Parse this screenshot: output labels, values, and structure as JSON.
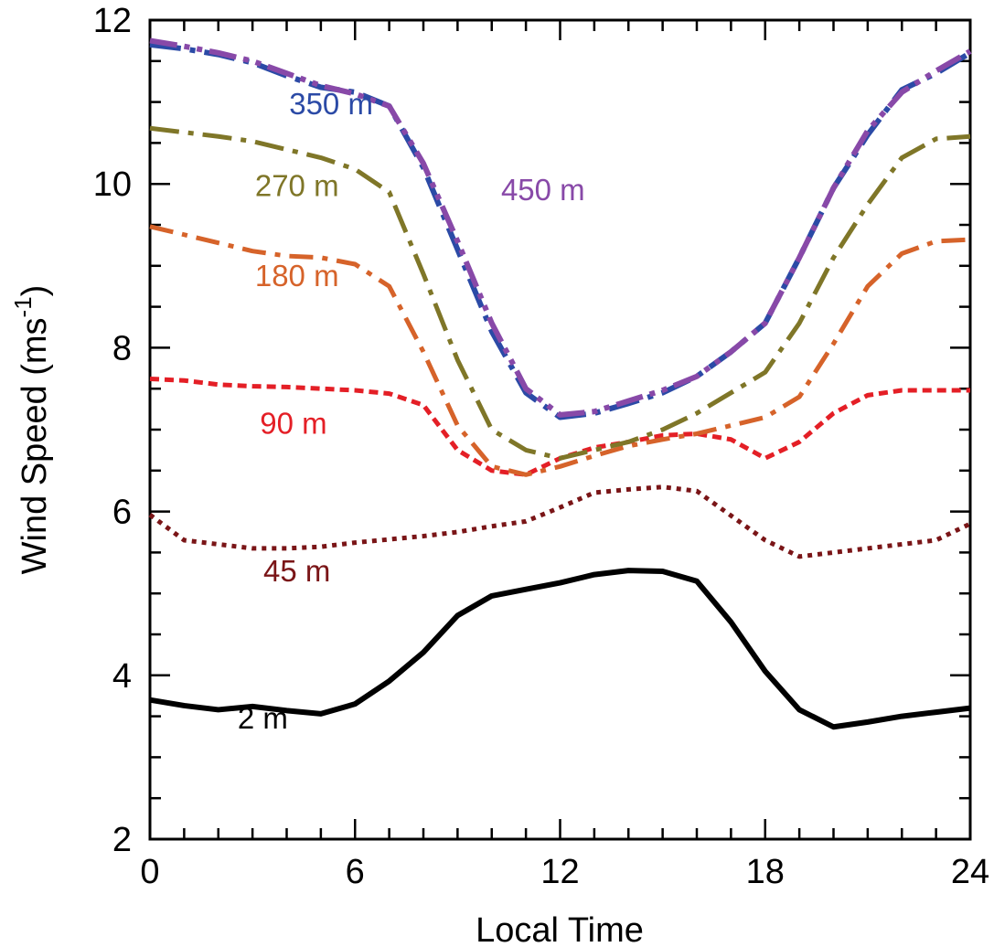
{
  "chart_data": {
    "type": "line",
    "xlabel": "Local Time",
    "ylabel": "Wind Speed (ms",
    "ylabel_superscript": "-1",
    "ylabel_close": ")",
    "xlim": [
      0,
      24
    ],
    "ylim": [
      2,
      12
    ],
    "x_ticks": [
      0,
      6,
      12,
      18,
      24
    ],
    "y_ticks": [
      2,
      4,
      6,
      8,
      10,
      12
    ],
    "x": [
      0,
      1,
      2,
      3,
      4,
      5,
      6,
      7,
      8,
      9,
      10,
      11,
      12,
      13,
      14,
      15,
      16,
      17,
      18,
      19,
      20,
      21,
      22,
      23,
      24
    ],
    "series": [
      {
        "name": "2 m",
        "color": "#000000",
        "dash": "solid",
        "label_at": [
          3.3,
          3.35
        ],
        "values": [
          3.7,
          3.63,
          3.58,
          3.62,
          3.57,
          3.53,
          3.65,
          3.93,
          4.28,
          4.73,
          4.97,
          5.05,
          5.13,
          5.23,
          5.28,
          5.27,
          5.15,
          4.65,
          4.05,
          3.58,
          3.37,
          3.43,
          3.5,
          3.55,
          3.6
        ]
      },
      {
        "name": "45 m",
        "color": "#7a1517",
        "dash": "dot",
        "label_at": [
          4.3,
          5.15
        ],
        "values": [
          5.96,
          5.65,
          5.6,
          5.55,
          5.55,
          5.57,
          5.62,
          5.66,
          5.7,
          5.75,
          5.82,
          5.88,
          6.05,
          6.23,
          6.27,
          6.3,
          6.25,
          5.95,
          5.65,
          5.45,
          5.5,
          5.55,
          5.6,
          5.65,
          5.85
        ]
      },
      {
        "name": "90 m",
        "color": "#e41f26",
        "dash": "shortdash",
        "label_at": [
          4.2,
          6.95
        ],
        "values": [
          7.62,
          7.6,
          7.55,
          7.53,
          7.52,
          7.5,
          7.48,
          7.44,
          7.3,
          6.75,
          6.5,
          6.45,
          6.65,
          6.78,
          6.85,
          6.93,
          6.95,
          6.88,
          6.65,
          6.85,
          7.2,
          7.42,
          7.48,
          7.48,
          7.48
        ]
      },
      {
        "name": "180 m",
        "color": "#d6632a",
        "dash": "dashdot",
        "label_at": [
          4.3,
          8.75
        ],
        "values": [
          9.48,
          9.38,
          9.28,
          9.18,
          9.12,
          9.1,
          9.02,
          8.75,
          7.95,
          7.05,
          6.55,
          6.45,
          6.55,
          6.68,
          6.8,
          6.88,
          6.95,
          7.05,
          7.15,
          7.4,
          8.05,
          8.75,
          9.15,
          9.3,
          9.32
        ]
      },
      {
        "name": "270 m",
        "color": "#7f7628",
        "dash": "longdash",
        "label_at": [
          4.3,
          9.85
        ],
        "values": [
          10.68,
          10.63,
          10.58,
          10.52,
          10.42,
          10.32,
          10.18,
          9.9,
          8.9,
          7.85,
          7.0,
          6.75,
          6.65,
          6.75,
          6.85,
          7.0,
          7.2,
          7.45,
          7.7,
          8.3,
          9.1,
          9.75,
          10.32,
          10.55,
          10.58
        ]
      },
      {
        "name": "350 m",
        "color": "#2b4aa6",
        "dash": "dashdot2",
        "label_at": [
          5.3,
          10.85
        ],
        "values": [
          11.7,
          11.65,
          11.58,
          11.48,
          11.32,
          11.18,
          11.12,
          10.95,
          10.2,
          9.2,
          8.2,
          7.45,
          7.15,
          7.2,
          7.32,
          7.45,
          7.65,
          7.95,
          8.3,
          9.1,
          9.95,
          10.6,
          11.15,
          11.35,
          11.6
        ]
      },
      {
        "name": "450 m",
        "color": "#8849a8",
        "dash": "dashdot3",
        "label_at": [
          11.5,
          9.8
        ],
        "values": [
          11.75,
          11.68,
          11.6,
          11.5,
          11.35,
          11.2,
          11.1,
          10.95,
          10.25,
          9.3,
          8.3,
          7.5,
          7.18,
          7.22,
          7.35,
          7.48,
          7.65,
          7.95,
          8.3,
          9.1,
          9.95,
          10.65,
          11.12,
          11.38,
          11.62
        ]
      }
    ]
  }
}
